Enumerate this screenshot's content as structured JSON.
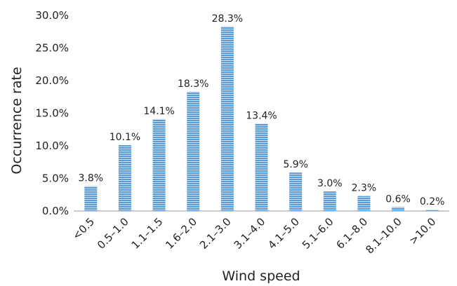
{
  "chart_data": {
    "type": "bar",
    "categories": [
      "<0.5",
      "0.5–1.0",
      "1.1–1.5",
      "1.6–2.0",
      "2.1–3.0",
      "3.1–4.0",
      "4.1–5.0",
      "5.1–6.0",
      "6.1–8.0",
      "8.1–10.0",
      ">10.0"
    ],
    "values": [
      3.8,
      10.1,
      14.1,
      18.3,
      28.3,
      13.4,
      5.9,
      3.0,
      2.3,
      0.6,
      0.2
    ],
    "value_labels": [
      "3.8%",
      "10.1%",
      "14.1%",
      "18.3%",
      "28.3%",
      "13.4%",
      "5.9%",
      "3.0%",
      "2.3%",
      "0.6%",
      "0.2%"
    ],
    "xlabel": "Wind speed",
    "ylabel": "Occurrence rate",
    "ylim": [
      0,
      30
    ],
    "yticks": [
      0,
      5,
      10,
      15,
      20,
      25,
      30
    ],
    "ytick_labels": [
      "0.0%",
      "5.0%",
      "10.0%",
      "15.0%",
      "20.0%",
      "25.0%",
      "30.0%"
    ],
    "grid": false,
    "legend": "none",
    "bar_color": "#5b9bd5",
    "bar_stripe_color": "#ffffff"
  }
}
